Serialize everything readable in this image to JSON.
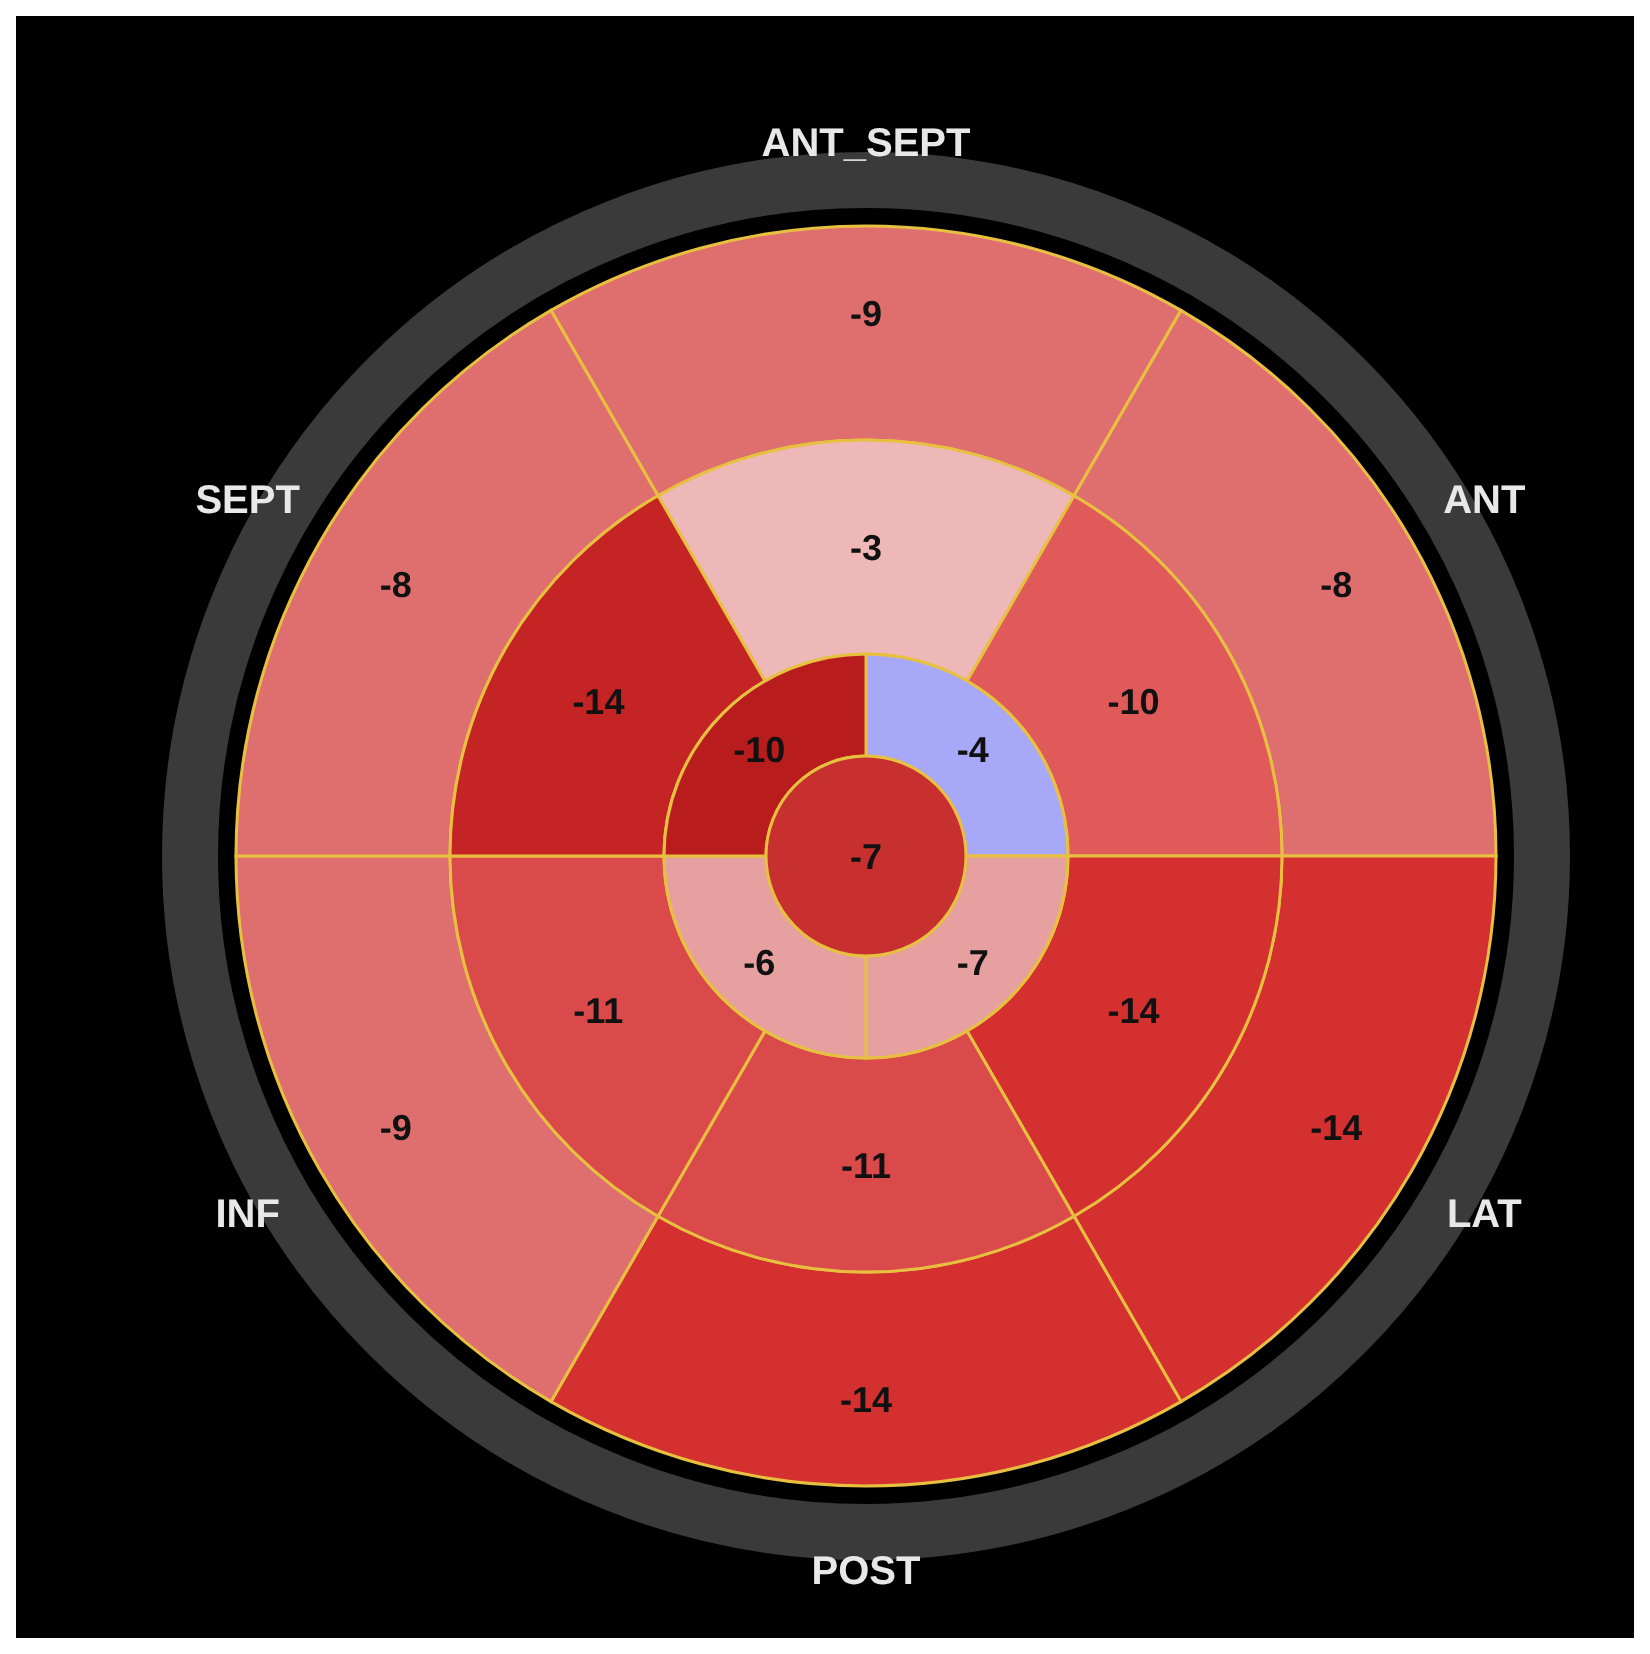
{
  "chart_data": [
    {
      "type": "other",
      "data_labels": true,
      "categories": [
        "ANT_SEPT",
        "ANT",
        "LAT",
        "POST",
        "INF",
        "SEPT"
      ],
      "series": [
        {
          "values": [
            -9,
            -8,
            -14,
            -14,
            -9,
            -8
          ],
          "colors": [
            "#df6f6f",
            "#df6f6f",
            "#d43030",
            "#d43030",
            "#df6f6f",
            "#df6f6f"
          ]
        },
        {
          "values": [
            -3,
            -10,
            -14,
            -11,
            -11,
            -14
          ],
          "colors": [
            "#eeb8b8",
            "#e05a5a",
            "#d43030",
            "#da4a4a",
            "#da4a4a",
            "#c42424"
          ]
        }
      ]
    },
    {
      "type": "other",
      "data_labels": true,
      "categories": [
        null
      ],
      "values": [
        -4
      ],
      "colors": [
        "#a8a8f8"
      ]
    },
    {
      "type": "other",
      "data_labels": true,
      "categories": [
        null
      ],
      "values": [
        -7
      ],
      "colors": [
        "#e6a0a0"
      ]
    },
    {
      "type": "other",
      "data_labels": true,
      "categories": [
        null
      ],
      "values": [
        -6
      ],
      "colors": [
        "#e6a0a0"
      ]
    },
    {
      "type": "other",
      "data_labels": true,
      "categories": [
        null
      ],
      "values": [
        -10
      ],
      "colors": [
        "#b81c1c"
      ]
    },
    {
      "type": "other",
      "data_labels": true,
      "categories": [
        null
      ],
      "values": [
        -7
      ],
      "colors": [
        "#c83030"
      ]
    }
  ]
}
